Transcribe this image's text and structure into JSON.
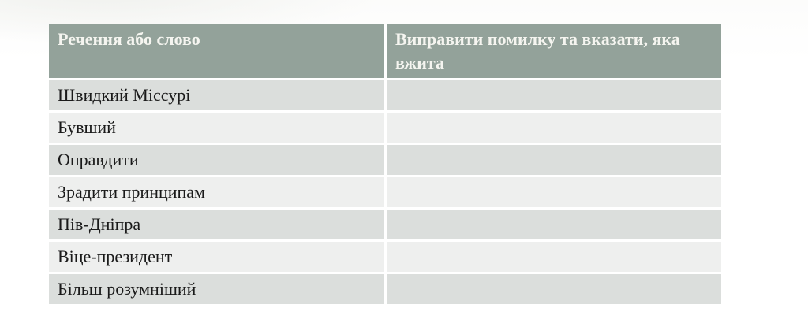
{
  "slide": {
    "table": {
      "column_headers": [
        "Речення або слово",
        "Виправити помилку та вказати, яка вжита"
      ],
      "rows": [
        {
          "phrase": "Швидкий Міссурі",
          "correction": ""
        },
        {
          "phrase": "Бувший",
          "correction": ""
        },
        {
          "phrase": "Оправдити",
          "correction": ""
        },
        {
          "phrase": "Зрадити принципам",
          "correction": ""
        },
        {
          "phrase": "Пів-Дніпра",
          "correction": ""
        },
        {
          "phrase": "Віце-президент",
          "correction": ""
        },
        {
          "phrase": "Більш розумніший",
          "correction": ""
        }
      ],
      "colors": {
        "header_bg": "#93A29A",
        "header_text": "#F5F5F0",
        "row_dark_bg": "#DBDEDC",
        "row_light_bg": "#EEEFEE",
        "body_text": "#1A1A1A",
        "separator": "#FFFFFF"
      }
    }
  }
}
